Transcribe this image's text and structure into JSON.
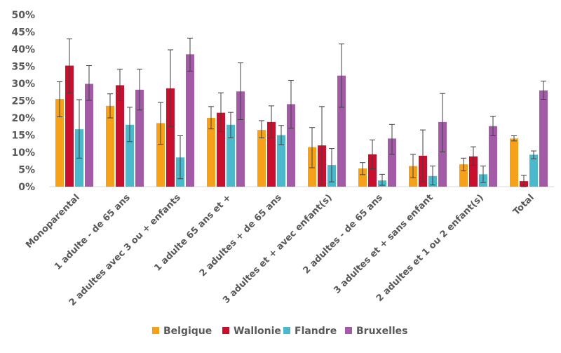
{
  "chart_data": {
    "type": "bar",
    "title": "",
    "xlabel": "",
    "ylabel": "",
    "ylim": [
      0,
      50
    ],
    "yticks": [
      "0%",
      "5%",
      "10%",
      "15%",
      "20%",
      "25%",
      "30%",
      "35%",
      "40%",
      "45%",
      "50%"
    ],
    "grid": false,
    "legend_position": "bottom",
    "categories": [
      "Monoparental",
      "1 adulte - de 65 ans",
      "2 adultes avec 3 ou + enfants",
      "1 adulte 65 ans et +",
      "2 adultes + de 65 ans",
      "3 adultes et + avec enfant(s)",
      "2 adultes - de 65 ans",
      "3 adultes et + sans enfant",
      "2 adultes et 1 ou 2 enfant(s)",
      "Total"
    ],
    "series": [
      {
        "name": "Belgique",
        "color": "#F7A11A",
        "values": [
          25.5,
          23.5,
          18.5,
          20.0,
          16.5,
          11.5,
          5.3,
          6.0,
          6.5,
          14.0
        ],
        "err_low": [
          20.3,
          20.0,
          12.3,
          16.8,
          14.2,
          5.5,
          3.5,
          2.6,
          4.6,
          13.3
        ],
        "err_high": [
          30.5,
          27.0,
          24.5,
          23.3,
          19.2,
          17.2,
          7.0,
          9.4,
          8.3,
          14.8
        ]
      },
      {
        "name": "Wallonie",
        "color": "#C8102E",
        "values": [
          35.2,
          29.5,
          28.6,
          21.5,
          18.8,
          12.0,
          9.4,
          9.0,
          8.8,
          1.6
        ],
        "err_low": [
          27.3,
          25.0,
          17.5,
          16.0,
          14.3,
          0.5,
          5.2,
          1.4,
          6.2,
          0.0
        ],
        "err_high": [
          43.0,
          34.2,
          39.8,
          27.3,
          23.5,
          23.3,
          13.6,
          16.5,
          11.6,
          3.3
        ]
      },
      {
        "name": "Flandre",
        "color": "#4BB8CC",
        "values": [
          16.7,
          18.0,
          8.5,
          18.0,
          15.0,
          6.3,
          1.8,
          3.1,
          3.6,
          9.3
        ],
        "err_low": [
          8.3,
          13.1,
          2.3,
          14.2,
          12.2,
          1.4,
          0.4,
          0.5,
          1.2,
          8.1
        ],
        "err_high": [
          25.3,
          23.1,
          14.8,
          21.6,
          17.8,
          11.1,
          3.6,
          6.0,
          6.0,
          10.4
        ]
      },
      {
        "name": "Bruxelles",
        "color": "#A45BA7",
        "values": [
          29.9,
          28.2,
          38.5,
          27.7,
          24.0,
          32.3,
          14.0,
          18.8,
          17.6,
          28.0
        ],
        "err_low": [
          25.1,
          22.3,
          33.6,
          19.5,
          17.0,
          23.1,
          9.4,
          10.1,
          14.8,
          25.4
        ],
        "err_high": [
          35.2,
          34.2,
          43.2,
          36.0,
          30.9,
          41.5,
          18.1,
          27.1,
          20.5,
          30.7
        ]
      }
    ]
  }
}
